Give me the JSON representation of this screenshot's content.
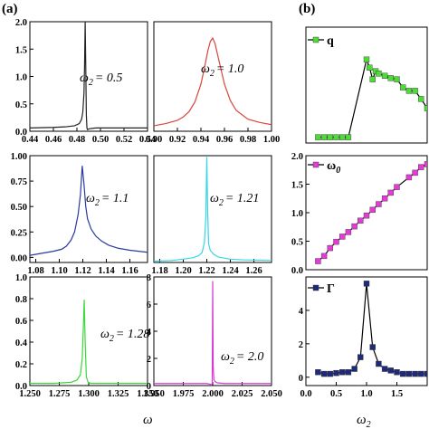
{
  "panel_labels": {
    "a": "(a)",
    "b": "(b)"
  },
  "axis_labels": {
    "left_x": "ω",
    "right_x": "ω",
    "right_x_sub": "2"
  },
  "chart_data": [
    {
      "type": "line",
      "annotation": "= 0.5",
      "anno_symbol": "ω",
      "anno_sub": "2",
      "color": "#222222",
      "xlim": [
        0.44,
        0.54
      ],
      "ylim": [
        0.0,
        2.0
      ],
      "xticks": [
        "0.44",
        "0.46",
        "0.48",
        "0.50",
        "0.52",
        "0.54"
      ],
      "yticks": [
        "0.0",
        "0.5",
        "1.0",
        "1.5",
        "2.0"
      ],
      "series": [
        {
          "x": [
            0.44,
            0.46,
            0.47,
            0.478,
            0.482,
            0.484,
            0.485,
            0.486,
            0.4865,
            0.487,
            0.4875,
            0.488,
            0.4885,
            0.489,
            0.49,
            0.492,
            0.496,
            0.5,
            0.51,
            0.52,
            0.54
          ],
          "y": [
            0.06,
            0.07,
            0.08,
            0.1,
            0.14,
            0.22,
            0.35,
            0.7,
            1.2,
            2.0,
            1.2,
            0.3,
            0.06,
            0.03,
            0.04,
            0.05,
            0.06,
            0.06,
            0.06,
            0.06,
            0.06
          ]
        }
      ]
    },
    {
      "type": "line",
      "annotation": "= 1.0",
      "anno_symbol": "ω",
      "anno_sub": "2",
      "color": "#d8453b",
      "xlim": [
        0.9,
        1.0
      ],
      "ylim": [
        0.0,
        1.0
      ],
      "xticks": [
        "0.90",
        "0.92",
        "0.94",
        "0.96",
        "0.98",
        "1.00"
      ],
      "yticks": [],
      "series": [
        {
          "x": [
            0.9,
            0.91,
            0.92,
            0.925,
            0.93,
            0.935,
            0.94,
            0.943,
            0.946,
            0.948,
            0.95,
            0.952,
            0.955,
            0.96,
            0.965,
            0.97,
            0.98,
            0.99,
            1.0
          ],
          "y": [
            0.05,
            0.07,
            0.1,
            0.13,
            0.18,
            0.27,
            0.43,
            0.58,
            0.74,
            0.82,
            0.85,
            0.8,
            0.66,
            0.43,
            0.28,
            0.19,
            0.11,
            0.08,
            0.06
          ]
        }
      ]
    },
    {
      "type": "line",
      "annotation": "= 1.1",
      "anno_symbol": "ω",
      "anno_sub": "2",
      "color": "#2a3a9c",
      "xlim": [
        1.075,
        1.175
      ],
      "ylim": [
        -0.05,
        1.0
      ],
      "xticks": [
        "1.08",
        "1.10",
        "1.12",
        "1.14",
        "1.16"
      ],
      "yticks": [
        "0.00",
        "0.25",
        "0.50",
        "0.75",
        "1.00"
      ],
      "series": [
        {
          "x": [
            1.075,
            1.085,
            1.095,
            1.102,
            1.106,
            1.11,
            1.113,
            1.116,
            1.118,
            1.1195,
            1.121,
            1.1225,
            1.124,
            1.127,
            1.131,
            1.136,
            1.142,
            1.15,
            1.16,
            1.175
          ],
          "y": [
            0.02,
            0.04,
            0.06,
            0.08,
            0.11,
            0.17,
            0.25,
            0.42,
            0.62,
            0.9,
            0.72,
            0.5,
            0.38,
            0.28,
            0.21,
            0.16,
            0.12,
            0.09,
            0.07,
            0.05
          ]
        }
      ]
    },
    {
      "type": "line",
      "annotation": "= 1.21",
      "anno_symbol": "ω",
      "anno_sub": "2",
      "color": "#35d6e6",
      "xlim": [
        1.175,
        1.275
      ],
      "ylim": [
        0.0,
        1.6
      ],
      "xticks": [
        "1.18",
        "1.20",
        "1.22",
        "1.24",
        "1.26"
      ],
      "yticks": [],
      "series": [
        {
          "x": [
            1.175,
            1.19,
            1.2,
            1.208,
            1.213,
            1.216,
            1.218,
            1.2192,
            1.22,
            1.2207,
            1.2215,
            1.223,
            1.226,
            1.23,
            1.24,
            1.25,
            1.275
          ],
          "y": [
            0.02,
            0.03,
            0.05,
            0.07,
            0.1,
            0.15,
            0.3,
            0.7,
            1.58,
            0.8,
            0.28,
            0.18,
            0.12,
            0.08,
            0.05,
            0.04,
            0.03
          ]
        }
      ]
    },
    {
      "type": "line",
      "annotation": "= 1.28",
      "anno_symbol": "ω",
      "anno_sub": "2",
      "color": "#3ad83a",
      "xlim": [
        1.25,
        1.35
      ],
      "ylim": [
        0.0,
        1.0
      ],
      "xticks": [
        "1.250",
        "1.275",
        "1.300",
        "1.325",
        "1.350"
      ],
      "yticks": [
        "0.0",
        "0.2",
        "0.4",
        "0.6",
        "0.8",
        "1.0"
      ],
      "series": [
        {
          "x": [
            1.25,
            1.27,
            1.285,
            1.29,
            1.293,
            1.2945,
            1.2955,
            1.2962,
            1.297,
            1.298,
            1.2995,
            1.302,
            1.31,
            1.325,
            1.35
          ],
          "y": [
            0.02,
            0.02,
            0.03,
            0.05,
            0.1,
            0.25,
            0.55,
            0.79,
            0.4,
            0.08,
            0.03,
            0.02,
            0.02,
            0.02,
            0.02
          ]
        }
      ]
    },
    {
      "type": "line",
      "annotation": "= 2.0",
      "anno_symbol": "ω",
      "anno_sub": "2",
      "color": "#d63ad6",
      "xlim": [
        1.95,
        2.05
      ],
      "ylim": [
        0.0,
        8.0
      ],
      "xticks": [
        "1.950",
        "1.975",
        "2.000",
        "2.025",
        "2.050"
      ],
      "yticks": [
        "0",
        "2",
        "4",
        "6",
        "8"
      ],
      "series": [
        {
          "x": [
            1.95,
            1.98,
            1.995,
            1.998,
            1.999,
            1.9996,
            2.0,
            2.0004,
            2.001,
            2.002,
            2.004,
            2.01,
            2.03,
            2.05
          ],
          "y": [
            0.15,
            0.15,
            0.15,
            0.1,
            0.0,
            0.2,
            7.7,
            1.5,
            0.45,
            0.3,
            0.2,
            0.15,
            0.15,
            0.15
          ]
        }
      ]
    },
    {
      "type": "line",
      "legend": "q",
      "legend_symbol": "",
      "color": "#4ddc36",
      "marker": "square",
      "xlim": [
        0.0,
        2.0
      ],
      "ylim": [
        0.0,
        1.0
      ],
      "xticks": [],
      "yticks": [],
      "series": [
        {
          "name": "q",
          "x": [
            0.2,
            0.3,
            0.4,
            0.5,
            0.6,
            0.7,
            1.0,
            1.05,
            1.1,
            1.15,
            1.2,
            1.3,
            1.4,
            1.5,
            1.6,
            1.7,
            1.8,
            1.9,
            2.0
          ],
          "y": [
            0.05,
            0.05,
            0.05,
            0.05,
            0.05,
            0.05,
            0.72,
            0.65,
            0.55,
            0.62,
            0.6,
            0.58,
            0.56,
            0.55,
            0.48,
            0.45,
            0.45,
            0.38,
            0.3
          ]
        }
      ]
    },
    {
      "type": "line",
      "legend": "",
      "legend_symbol": "ω",
      "legend_sub": "0",
      "color": "#e43ad6",
      "marker": "square",
      "xlim": [
        0.0,
        2.0
      ],
      "ylim": [
        0.0,
        2.0
      ],
      "xticks": [],
      "yticks": [
        "0.0",
        "0.5",
        "1.0",
        "1.5",
        "2.0"
      ],
      "series": [
        {
          "name": "ω0",
          "x": [
            0.2,
            0.3,
            0.4,
            0.5,
            0.6,
            0.7,
            0.8,
            0.9,
            1.0,
            1.1,
            1.2,
            1.3,
            1.4,
            1.5,
            1.7,
            1.8,
            1.9,
            2.0
          ],
          "y": [
            0.15,
            0.24,
            0.38,
            0.49,
            0.58,
            0.66,
            0.76,
            0.86,
            0.95,
            1.05,
            1.15,
            1.25,
            1.35,
            1.45,
            1.62,
            1.7,
            1.8,
            1.85
          ]
        }
      ]
    },
    {
      "type": "line",
      "legend": "Γ",
      "legend_symbol": "",
      "color": "#1f2a7a",
      "marker": "square",
      "xlim": [
        0.0,
        2.0
      ],
      "ylim": [
        -0.5,
        6.0
      ],
      "xticks": [
        "0.0",
        "0.5",
        "1.0",
        "1.5"
      ],
      "yticks": [
        "0",
        "2",
        "4"
      ],
      "series": [
        {
          "name": "Γ",
          "x": [
            0.2,
            0.3,
            0.4,
            0.5,
            0.6,
            0.7,
            0.8,
            0.9,
            1.0,
            1.1,
            1.2,
            1.3,
            1.4,
            1.5,
            1.6,
            1.7,
            1.8,
            1.9,
            2.0
          ],
          "y": [
            0.3,
            0.2,
            0.2,
            0.25,
            0.3,
            0.3,
            0.5,
            1.2,
            5.6,
            1.8,
            0.8,
            0.5,
            0.4,
            0.3,
            0.2,
            0.2,
            0.2,
            0.2,
            0.2
          ]
        }
      ]
    }
  ]
}
